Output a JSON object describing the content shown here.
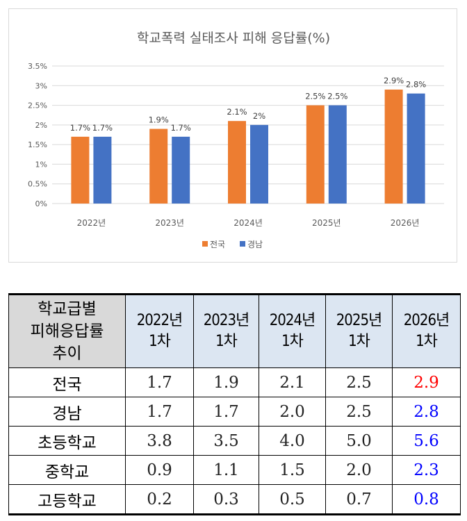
{
  "chart_data": {
    "type": "bar",
    "title": "학교폭력 실태조사 피해 응답률(%)",
    "categories": [
      "2022년",
      "2023년",
      "2024년",
      "2025년",
      "2026년"
    ],
    "series": [
      {
        "name": "전국",
        "values": [
          1.7,
          1.9,
          2.1,
          2.5,
          2.9
        ],
        "labels": [
          "1.7%",
          "1.9%",
          "2.1%",
          "2.5%",
          "2.9%"
        ],
        "color": "#ed7d31"
      },
      {
        "name": "경남",
        "values": [
          1.7,
          1.7,
          2.0,
          2.5,
          2.8
        ],
        "labels": [
          "1.7%",
          "1.7%",
          "2%",
          "2.5%",
          "2.8%"
        ],
        "color": "#4472c4"
      }
    ],
    "yticks": [
      "0%",
      "0.5%",
      "1%",
      "1.5%",
      "2%",
      "2.5%",
      "3%",
      "3.5%"
    ],
    "ylim": [
      0,
      3.5
    ],
    "grid": true,
    "legend": "bottom"
  },
  "table": {
    "corner": [
      "학교급별",
      "피해응답률",
      "추이"
    ],
    "columns": [
      {
        "year": "2022년",
        "round": "1차"
      },
      {
        "year": "2023년",
        "round": "1차"
      },
      {
        "year": "2024년",
        "round": "1차"
      },
      {
        "year": "2025년",
        "round": "1차"
      },
      {
        "year": "2026년",
        "round": "1차"
      }
    ],
    "rows": [
      {
        "label": "전국",
        "values": [
          "1.7",
          "1.9",
          "2.1",
          "2.5",
          "2.9"
        ]
      },
      {
        "label": "경남",
        "values": [
          "1.7",
          "1.7",
          "2.0",
          "2.5",
          "2.8"
        ]
      },
      {
        "label": "초등학교",
        "values": [
          "3.8",
          "3.5",
          "4.0",
          "5.0",
          "5.6"
        ]
      },
      {
        "label": "중학교",
        "values": [
          "0.9",
          "1.1",
          "1.5",
          "2.0",
          "2.3"
        ]
      },
      {
        "label": "고등학교",
        "values": [
          "0.2",
          "0.3",
          "0.5",
          "0.7",
          "0.8"
        ]
      }
    ],
    "last_col_colors": [
      "#ff0000",
      "#0000ff",
      "#0000ff",
      "#0000ff",
      "#0000ff"
    ]
  }
}
